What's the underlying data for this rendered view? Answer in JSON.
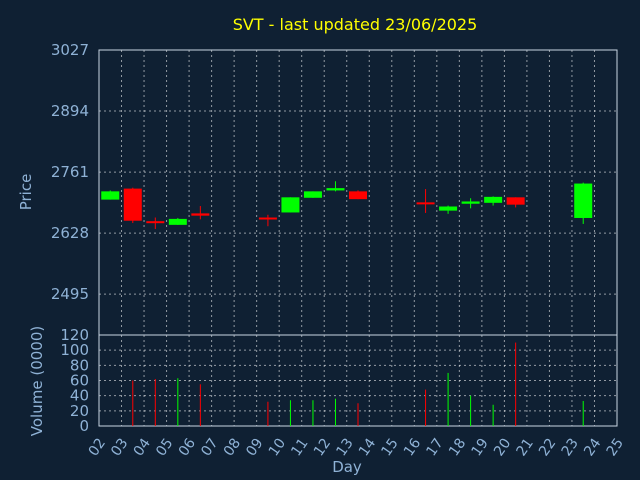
{
  "chart_data": [
    {
      "type": "candlestick",
      "title": "SVT - last updated 23/06/2025",
      "ylabel": "Price",
      "xlabel": "",
      "ylim": [
        2406,
        3027
      ],
      "yticks": [
        3027,
        2894,
        2761,
        2628,
        2495
      ],
      "grid": true,
      "colors": {
        "up": "#00ff00",
        "down": "#ff0000"
      },
      "candles": [
        {
          "day": "02",
          "open": 2701,
          "high": 2721,
          "low": 2701,
          "close": 2719
        },
        {
          "day": "03",
          "open": 2725,
          "high": 2727,
          "low": 2650,
          "close": 2655
        },
        {
          "day": "04",
          "open": 2654,
          "high": 2662,
          "low": 2637,
          "close": 2651
        },
        {
          "day": "05",
          "open": 2646,
          "high": 2661,
          "low": 2646,
          "close": 2659
        },
        {
          "day": "06",
          "open": 2671,
          "high": 2687,
          "low": 2658,
          "close": 2666
        },
        {
          "day": "09",
          "open": 2662,
          "high": 2668,
          "low": 2643,
          "close": 2659
        },
        {
          "day": "10",
          "open": 2673,
          "high": 2706,
          "low": 2673,
          "close": 2706
        },
        {
          "day": "11",
          "open": 2705,
          "high": 2719,
          "low": 2705,
          "close": 2719
        },
        {
          "day": "12",
          "open": 2721,
          "high": 2741,
          "low": 2719,
          "close": 2726
        },
        {
          "day": "13",
          "open": 2719,
          "high": 2721,
          "low": 2702,
          "close": 2702
        },
        {
          "day": "16",
          "open": 2695,
          "high": 2724,
          "low": 2672,
          "close": 2693
        },
        {
          "day": "17",
          "open": 2677,
          "high": 2688,
          "low": 2670,
          "close": 2686
        },
        {
          "day": "18",
          "open": 2692,
          "high": 2704,
          "low": 2682,
          "close": 2697
        },
        {
          "day": "19",
          "open": 2694,
          "high": 2708,
          "low": 2688,
          "close": 2707
        },
        {
          "day": "20",
          "open": 2706,
          "high": 2706,
          "low": 2684,
          "close": 2690
        },
        {
          "day": "23",
          "open": 2661,
          "high": 2738,
          "low": 2648,
          "close": 2736
        }
      ]
    },
    {
      "type": "bar",
      "ylabel": "Volume (0000)",
      "xlabel": "Day",
      "ylim": [
        0,
        120
      ],
      "yticks": [
        0,
        20,
        40,
        60,
        80,
        100,
        120
      ],
      "grid": true,
      "categories": [
        "02",
        "03",
        "04",
        "05",
        "06",
        "07",
        "08",
        "09",
        "10",
        "11",
        "12",
        "13",
        "14",
        "15",
        "16",
        "17",
        "18",
        "19",
        "20",
        "21",
        "22",
        "23",
        "24"
      ],
      "volumes": [
        {
          "day": "03",
          "value": 60,
          "direction": "down"
        },
        {
          "day": "04",
          "value": 62,
          "direction": "down"
        },
        {
          "day": "05",
          "value": 63,
          "direction": "up"
        },
        {
          "day": "06",
          "value": 55,
          "direction": "down"
        },
        {
          "day": "09",
          "value": 32,
          "direction": "down"
        },
        {
          "day": "10",
          "value": 34,
          "direction": "up"
        },
        {
          "day": "11",
          "value": 34,
          "direction": "up"
        },
        {
          "day": "12",
          "value": 36,
          "direction": "up"
        },
        {
          "day": "13",
          "value": 30,
          "direction": "down"
        },
        {
          "day": "16",
          "value": 48,
          "direction": "down"
        },
        {
          "day": "17",
          "value": 70,
          "direction": "up"
        },
        {
          "day": "18",
          "value": 40,
          "direction": "up"
        },
        {
          "day": "19",
          "value": 28,
          "direction": "up"
        },
        {
          "day": "20",
          "value": 110,
          "direction": "down"
        },
        {
          "day": "23",
          "value": 33,
          "direction": "up"
        }
      ]
    }
  ]
}
